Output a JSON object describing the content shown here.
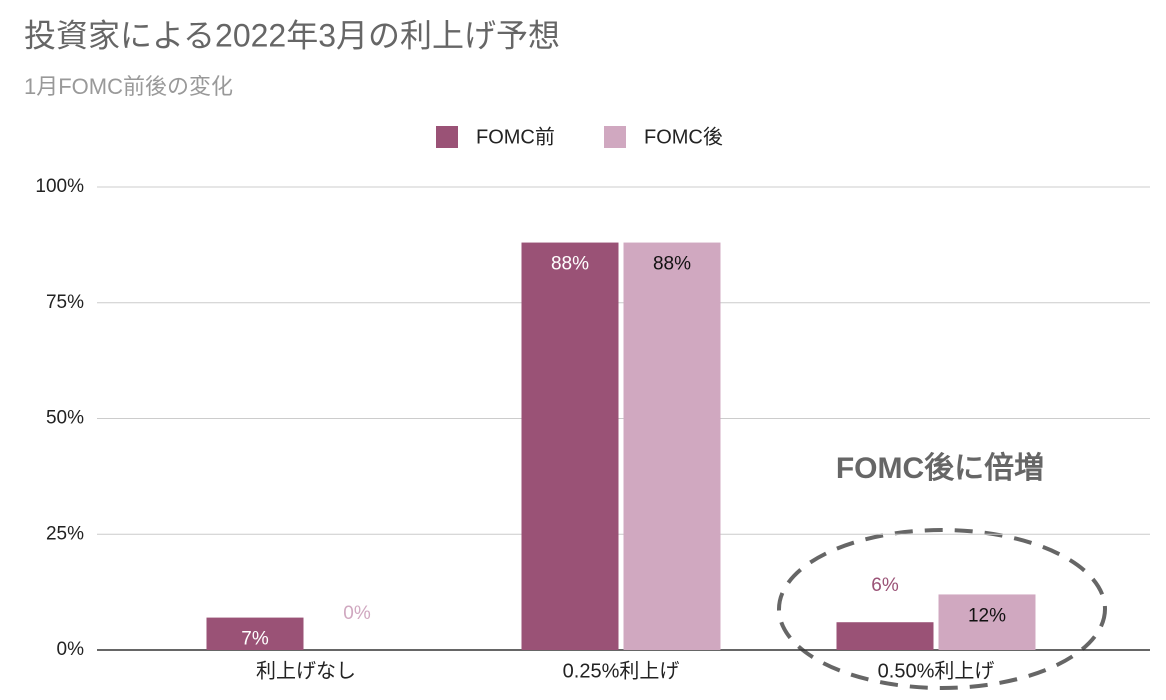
{
  "chart_data": {
    "type": "bar",
    "title": "投資家による2022年3月の利上げ予想",
    "subtitle": "1月FOMC前後の変化",
    "annotation": "FOMC後に倍増",
    "categories": [
      "利上げなし",
      "0.25%利上げ",
      "0.50%利上げ"
    ],
    "series": [
      {
        "name": "FOMC前",
        "color": "#9a5276",
        "values": [
          7,
          88,
          6
        ],
        "value_labels": [
          "7%",
          "88%",
          "6%"
        ]
      },
      {
        "name": "FOMC後",
        "color": "#d0a8c0",
        "values": [
          0,
          88,
          12
        ],
        "value_labels": [
          "0%",
          "88%",
          "12%"
        ]
      }
    ],
    "ylim": [
      0,
      100
    ],
    "yticks": [
      {
        "value": 0,
        "label": "0%"
      },
      {
        "value": 25,
        "label": "25%"
      },
      {
        "value": 50,
        "label": "50%"
      },
      {
        "value": 75,
        "label": "75%"
      },
      {
        "value": 100,
        "label": "100%"
      }
    ],
    "grid": true,
    "legend": "top"
  }
}
